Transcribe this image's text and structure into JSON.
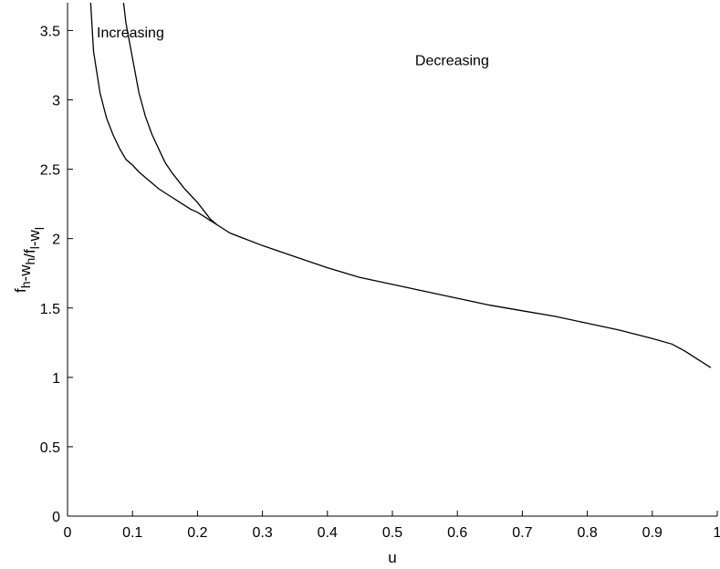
{
  "chart_data": {
    "type": "line",
    "title": "",
    "xlabel": "u",
    "ylabel": {
      "parts": [
        {
          "text": "f",
          "sub": "h"
        },
        {
          "text": "-w",
          "sub": "h"
        },
        {
          "text": "/f",
          "sub": "l"
        },
        {
          "text": "-w",
          "sub": "l"
        }
      ]
    },
    "xlim": [
      0,
      1
    ],
    "ylim": [
      0,
      3.7
    ],
    "xticks": [
      0,
      0.1,
      0.2,
      0.3,
      0.4,
      0.5,
      0.6,
      0.7,
      0.8,
      0.9,
      1
    ],
    "xtick_labels": [
      "0",
      "0.1",
      "0.2",
      "0.3",
      "0.4",
      "0.5",
      "0.6",
      "0.7",
      "0.8",
      "0.9",
      "1"
    ],
    "yticks": [
      0,
      0.5,
      1,
      1.5,
      2,
      2.5,
      3,
      3.5
    ],
    "ytick_labels": [
      "0",
      "0.5",
      "1",
      "1.5",
      "2",
      "2.5",
      "3",
      "3.5"
    ],
    "grid": false,
    "legend": "none",
    "annotations": [
      {
        "text": "Increasing",
        "x": 0.045,
        "y": 3.45
      },
      {
        "text": "Decreasing",
        "x": 0.535,
        "y": 3.25
      }
    ],
    "series": [
      {
        "x": [
          0.035,
          0.04,
          0.05,
          0.06,
          0.07,
          0.08,
          0.09,
          0.1,
          0.11,
          0.12,
          0.13,
          0.14,
          0.15,
          0.16,
          0.17,
          0.18,
          0.19,
          0.2,
          0.21,
          0.22,
          0.23
        ],
        "y": [
          3.75,
          3.35,
          3.05,
          2.87,
          2.75,
          2.65,
          2.57,
          2.53,
          2.48,
          2.44,
          2.4,
          2.36,
          2.33,
          2.3,
          2.27,
          2.24,
          2.21,
          2.19,
          2.16,
          2.13,
          2.1
        ]
      },
      {
        "x": [
          0.085,
          0.09,
          0.1,
          0.11,
          0.12,
          0.13,
          0.14,
          0.15,
          0.16,
          0.17,
          0.18,
          0.19,
          0.2,
          0.21,
          0.22,
          0.23
        ],
        "y": [
          3.75,
          3.55,
          3.3,
          3.05,
          2.88,
          2.75,
          2.65,
          2.55,
          2.48,
          2.42,
          2.36,
          2.31,
          2.26,
          2.2,
          2.14,
          2.1
        ]
      },
      {
        "x": [
          0.23,
          0.25,
          0.3,
          0.35,
          0.4,
          0.45,
          0.5,
          0.55,
          0.6,
          0.65,
          0.7,
          0.75,
          0.8,
          0.85,
          0.9,
          0.93,
          0.95,
          0.97,
          0.99
        ],
        "y": [
          2.1,
          2.04,
          1.95,
          1.87,
          1.79,
          1.72,
          1.67,
          1.62,
          1.57,
          1.52,
          1.48,
          1.44,
          1.39,
          1.34,
          1.28,
          1.24,
          1.19,
          1.13,
          1.07
        ]
      }
    ]
  }
}
